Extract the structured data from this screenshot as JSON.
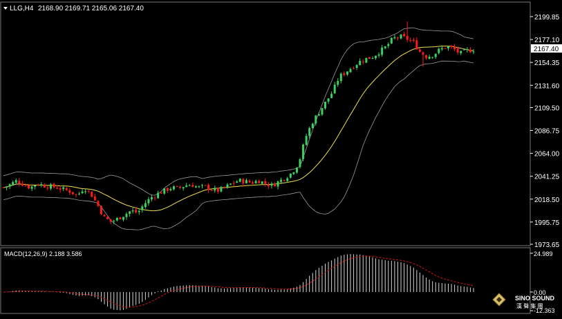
{
  "header": {
    "symbol_tf": "LLG,H4",
    "ohlc": "2168.90 2169.71 2165.06 2167.40"
  },
  "price_axis": {
    "labels": [
      "2199.85",
      "2177.10",
      "2154.35",
      "2131.60",
      "2109.50",
      "2086.75",
      "2064.00",
      "2041.25",
      "2018.50",
      "1995.75",
      "1973.65"
    ],
    "current_price": "2167.40"
  },
  "macd": {
    "title": "MACD(12,26,9) 2.188 3.586",
    "top_label": "24.989",
    "zero_label": "0.00",
    "bottom_label": "-12.363"
  },
  "watermark": {
    "brand": "SINO SOUND",
    "cn": "漢 聲 集 團"
  },
  "colors": {
    "background": "#000000",
    "bull": "#3cd060",
    "bear": "#ff1a1a",
    "ma": "#f0e050",
    "bands": "#9a9a9a",
    "signal": "#d01818",
    "hist": "#d8d8d8",
    "axis_text": "#ffffff"
  },
  "chart_data": [
    {
      "type": "candlestick",
      "name": "LLG,H4",
      "ylim": [
        1973.65,
        2199.85
      ],
      "close_path": [
        2030,
        2033,
        2037,
        2033,
        2030,
        2034,
        2032,
        2031,
        2030,
        2028,
        2026,
        2022,
        2030,
        2024,
        2013,
        2000,
        1996,
        1999,
        2003,
        2007,
        2005,
        2014,
        2020,
        2024,
        2027,
        2030,
        2029,
        2032,
        2033,
        2030,
        2031,
        2028,
        2027,
        2030,
        2034,
        2037,
        2036,
        2035,
        2037,
        2034,
        2032,
        2036,
        2040,
        2045,
        2055,
        2080,
        2095,
        2105,
        2115,
        2125,
        2140,
        2145,
        2150,
        2155,
        2158,
        2160,
        2165,
        2170,
        2178,
        2180,
        2178,
        2175,
        2165,
        2160,
        2162,
        2167,
        2170,
        2168,
        2163,
        2166,
        2167
      ],
      "indicators": [
        "moving average (yellow)",
        "Bollinger Bands (gray)"
      ]
    },
    {
      "type": "bar",
      "name": "MACD(12,26,9)",
      "values": {
        "macd": 2.188,
        "signal": 3.586
      },
      "ylim": [
        -12.363,
        24.989
      ]
    }
  ]
}
